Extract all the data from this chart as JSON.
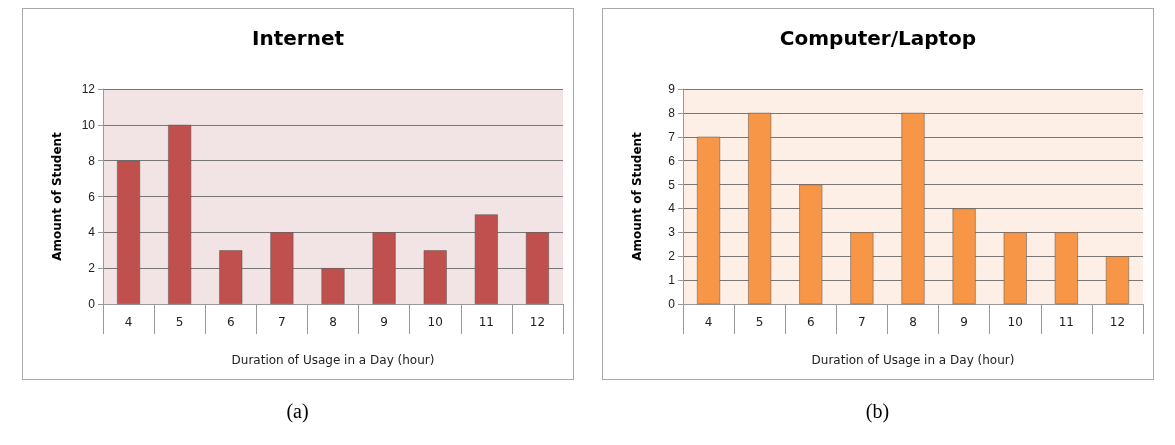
{
  "chart_data": [
    {
      "type": "bar",
      "title": "Internet",
      "xlabel": "Duration of Usage in a Day (hour)",
      "ylabel": "Amount of Student",
      "categories": [
        "4",
        "5",
        "6",
        "7",
        "8",
        "9",
        "10",
        "11",
        "12"
      ],
      "values": [
        8,
        10,
        3,
        4,
        2,
        4,
        3,
        5,
        4
      ],
      "color": "#c0504d",
      "ylim": [
        0,
        12
      ],
      "yticks": [
        0,
        2,
        4,
        6,
        8,
        10,
        12
      ],
      "grid": "y",
      "annotations": [
        "(a)"
      ]
    },
    {
      "type": "bar",
      "title": "Computer/Laptop",
      "xlabel": "Duration of Usage in a Day (hour)",
      "ylabel": "Amount of Student",
      "categories": [
        "4",
        "5",
        "6",
        "7",
        "8",
        "9",
        "10",
        "11",
        "12"
      ],
      "values": [
        7,
        8,
        5,
        3,
        8,
        4,
        3,
        3,
        2
      ],
      "color": "#f79646",
      "ylim": [
        0,
        9
      ],
      "yticks": [
        0,
        1,
        2,
        3,
        4,
        5,
        6,
        7,
        8,
        9
      ],
      "grid": "y",
      "annotations": [
        "(b)"
      ]
    }
  ]
}
